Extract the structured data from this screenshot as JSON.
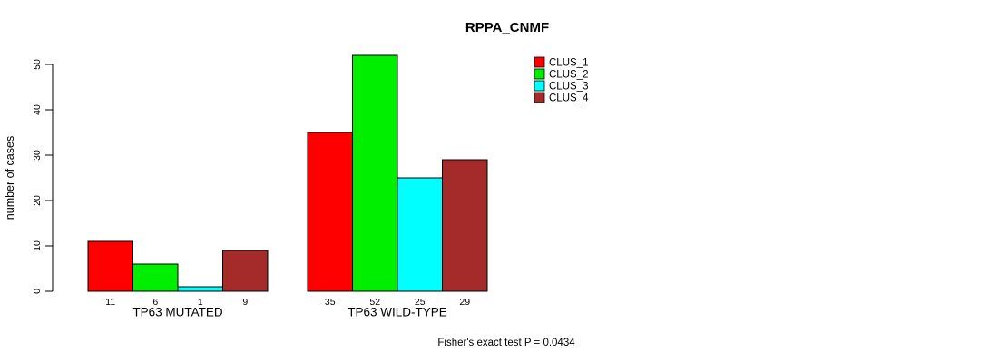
{
  "chart_data": {
    "type": "bar",
    "title": "RPPA_CNMF",
    "ylabel": "number of cases",
    "xlabel": "",
    "ylim": [
      0,
      50
    ],
    "yticks": [
      0,
      10,
      20,
      30,
      40,
      50
    ],
    "grid": false,
    "legend_position": "top-right",
    "categories": [
      "TP63 MUTATED",
      "TP63 WILD-TYPE"
    ],
    "series": [
      {
        "name": "CLUS_1",
        "color": "#ff0000",
        "values": [
          11,
          35
        ]
      },
      {
        "name": "CLUS_2",
        "color": "#00ee00",
        "values": [
          6,
          52
        ]
      },
      {
        "name": "CLUS_3",
        "color": "#00ffff",
        "values": [
          1,
          25
        ]
      },
      {
        "name": "CLUS_4",
        "color": "#a52a2a",
        "values": [
          9,
          29
        ]
      }
    ],
    "show_bar_values": true,
    "annotation": "Fisher's exact test P = 0.0434",
    "axis_color": "#000000",
    "bar_border_color": "#000000"
  }
}
